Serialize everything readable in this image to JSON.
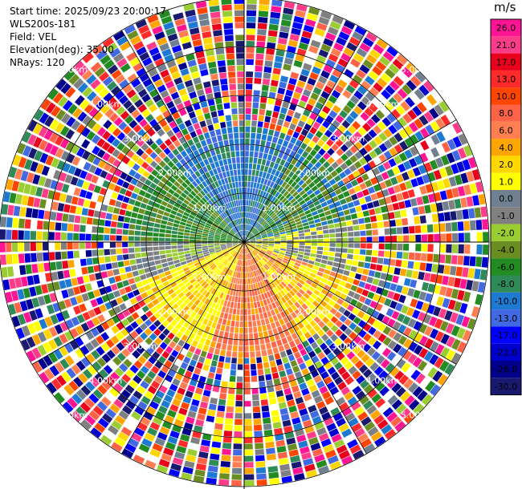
{
  "header": {
    "start_time": "Start time: 2025/09/23 20:00:17",
    "instrument": "WLS200s-181",
    "field": "Field: VEL",
    "elevation": "Elevation(deg): 35.00",
    "nrays": "NRays: 120"
  },
  "colorbar": {
    "unit": "m/s",
    "levels": [
      "26.0",
      "21.0",
      "17.0",
      "13.0",
      "10.0",
      "8.0",
      "6.0",
      "4.0",
      "2.0",
      "1.0",
      "0.0",
      "-1.0",
      "-2.0",
      "-4.0",
      "-6.0",
      "-8.0",
      "-10.0",
      "-13.0",
      "-17.0",
      "-21.0",
      "-26.0",
      "-30.0"
    ],
    "colors": [
      "#ff1493",
      "#ff3c8a",
      "#e8001c",
      "#ff2a2a",
      "#ff4500",
      "#ff6347",
      "#ff7f50",
      "#ffa500",
      "#ffd700",
      "#ffff00",
      "#708090",
      "#808080",
      "#9acd32",
      "#6b8e23",
      "#228b22",
      "#2e8b57",
      "#1e7ad0",
      "#4169e1",
      "#0000ff",
      "#0000cd",
      "#00008b",
      "#191970"
    ]
  },
  "rings": {
    "labels": [
      "1.00km",
      "2.00km",
      "3.00km",
      "4.00km",
      "5.00km"
    ]
  }
}
